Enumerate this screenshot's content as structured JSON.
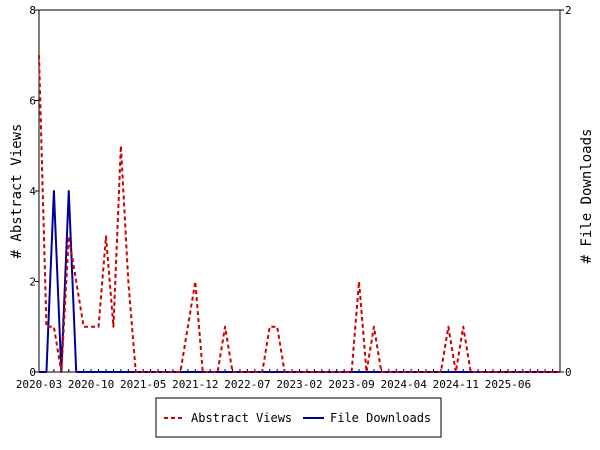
{
  "chart_data": {
    "type": "line",
    "x_tick_labels": [
      "2020-03",
      "2020-10",
      "2021-05",
      "2021-12",
      "2022-07",
      "2023-02",
      "2023-09",
      "2024-04",
      "2024-11",
      "2025-06"
    ],
    "ylabel_left": "# Abstract Views",
    "ylabel_right": "# File Downloads",
    "ylim_left": [
      0,
      8
    ],
    "ylim_right": [
      0,
      2
    ],
    "yticks_left": [
      "0",
      "2",
      "4",
      "6",
      "8"
    ],
    "yticks_right": [
      "0",
      "2"
    ],
    "grid": false,
    "legend_position": "bottom-center",
    "series": [
      {
        "name": "Abstract Views",
        "axis": "left",
        "color": "#cc0000",
        "style": "dashed",
        "values": [
          7,
          1,
          1,
          0,
          3,
          2,
          1,
          1,
          1,
          3,
          1,
          5,
          2,
          0,
          0,
          0,
          0,
          0,
          0,
          0,
          1,
          2,
          0,
          0,
          0,
          1,
          0,
          0,
          0,
          0,
          0,
          1,
          1,
          0,
          0,
          0,
          0,
          0,
          0,
          0,
          0,
          0,
          0,
          2,
          0,
          1,
          0,
          0,
          0,
          0,
          0,
          0,
          0,
          0,
          0,
          1,
          0,
          1,
          0,
          0,
          0,
          0,
          0,
          0,
          0,
          0,
          0,
          0,
          0,
          0,
          0
        ]
      },
      {
        "name": "File Downloads",
        "axis": "right",
        "color": "#000099",
        "style": "solid",
        "values": [
          0,
          0,
          1,
          0,
          1,
          0,
          0,
          0,
          0,
          0,
          0,
          0,
          0,
          0,
          0,
          0,
          0,
          0,
          0,
          0,
          0,
          0,
          0,
          0,
          0,
          0,
          0,
          0,
          0,
          0,
          0,
          0,
          0,
          0,
          0,
          0,
          0,
          0,
          0,
          0,
          0,
          0,
          0,
          0,
          0,
          0,
          0,
          0,
          0,
          0,
          0,
          0,
          0,
          0,
          0,
          0,
          0,
          0,
          0,
          0,
          0,
          0,
          0,
          0,
          0,
          0,
          0,
          0,
          0,
          0,
          0
        ]
      }
    ]
  }
}
